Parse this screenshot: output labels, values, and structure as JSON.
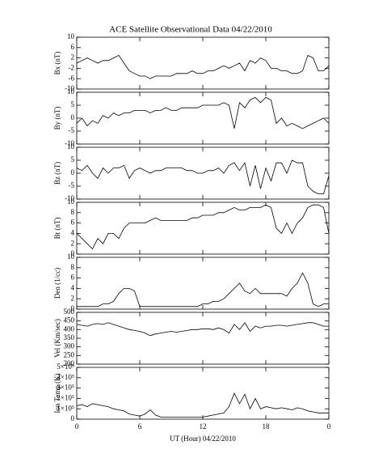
{
  "title": "ACE Satellite Observational Data   04/22/2010",
  "xlabel": "UT (Hour)   04/22/2010",
  "x": [
    0,
    0.5,
    1,
    1.5,
    2,
    2.5,
    3,
    3.5,
    4,
    4.5,
    5,
    5.5,
    6,
    6.5,
    7,
    7.5,
    8,
    8.5,
    9,
    9.5,
    10,
    10.5,
    11,
    11.5,
    12,
    12.5,
    13,
    13.5,
    14,
    14.5,
    15,
    15.5,
    16,
    16.5,
    17,
    17.5,
    18,
    18.5,
    19,
    19.5,
    20,
    20.5,
    21,
    21.5,
    22,
    22.5,
    23,
    23.5,
    24
  ],
  "xlim": [
    0,
    24
  ],
  "xticks": [
    0,
    6,
    12,
    18,
    {
      "value": 24,
      "label": "0"
    }
  ],
  "chart_data": [
    {
      "type": "line",
      "ylabel": "Bx (nT)",
      "color": "#000000",
      "ylim": [
        -10,
        10
      ],
      "yticks": [
        -10,
        -6,
        -2,
        2,
        6,
        10
      ],
      "values": [
        0,
        1,
        2,
        1,
        0,
        1,
        1,
        2,
        3,
        0,
        -3,
        -4,
        -5,
        -5,
        -6,
        -5,
        -5,
        -5,
        -5,
        -4,
        -4,
        -4,
        -3,
        -4,
        -4,
        -3,
        -3,
        -2,
        -1,
        -2,
        -1,
        0,
        -3,
        1,
        0,
        2,
        1,
        -2,
        -2,
        -3,
        -3,
        -4,
        -4,
        -3,
        3,
        2,
        -3,
        -3,
        -1
      ]
    },
    {
      "type": "line",
      "ylabel": "By (nT)",
      "color": "#000000",
      "ylim": [
        -10,
        10
      ],
      "yticks": [
        -10,
        -5,
        0,
        5,
        10
      ],
      "values": [
        -2,
        0,
        -3,
        -1,
        -2,
        1,
        0,
        2,
        1,
        2,
        2,
        3,
        3,
        3,
        2,
        3,
        3,
        4,
        3,
        3,
        4,
        4,
        4,
        4,
        5,
        5,
        5,
        5,
        6,
        5,
        -4,
        6,
        4,
        7,
        8,
        6,
        8,
        7,
        -2,
        0,
        -3,
        -2,
        -3,
        -4,
        -3,
        -2,
        -1,
        0,
        -2
      ]
    },
    {
      "type": "line",
      "ylabel": "Bz (nT)",
      "color": "#000000",
      "ylim": [
        -10,
        10
      ],
      "yticks": [
        -10,
        -5,
        0,
        5,
        10
      ],
      "values": [
        2,
        1,
        3,
        0,
        -2,
        2,
        0,
        2,
        2,
        3,
        -2,
        1,
        2,
        1,
        0,
        1,
        1,
        2,
        2,
        2,
        2,
        1,
        1,
        0,
        0,
        1,
        1,
        2,
        0,
        3,
        4,
        1,
        4,
        -5,
        3,
        -6,
        2,
        -3,
        4,
        4,
        0,
        5,
        4,
        4,
        -5,
        -7,
        -8,
        -8,
        -1
      ]
    },
    {
      "type": "line",
      "ylabel": "Bt (nT)",
      "color": "#000000",
      "ylim": [
        0,
        10
      ],
      "yticks": [
        0,
        2,
        4,
        6,
        8,
        10
      ],
      "values": [
        4,
        3,
        2,
        1,
        3,
        2,
        4,
        4,
        3,
        5,
        6,
        6,
        6,
        6,
        6.5,
        7,
        6.5,
        6.5,
        6.5,
        6.5,
        6.5,
        6.5,
        7,
        7,
        7.5,
        7.5,
        7.5,
        8,
        8,
        8.5,
        9,
        8.5,
        8.5,
        9,
        9,
        9,
        9.5,
        9,
        5,
        4,
        6,
        4,
        6,
        7,
        9,
        9.5,
        9.5,
        9,
        4
      ]
    },
    {
      "type": "line",
      "ylabel": "Den (1/cc)",
      "color": "#000000",
      "ylim": [
        0,
        10
      ],
      "yticks": [
        0,
        2,
        4,
        6,
        8,
        10
      ],
      "values": [
        0.5,
        0.5,
        0.5,
        0.5,
        0.5,
        1,
        1,
        1.5,
        3,
        4,
        4,
        3.5,
        0.5,
        0.5,
        0.5,
        0.5,
        0.5,
        0.5,
        0.5,
        0.5,
        0.5,
        0.5,
        0.5,
        0.5,
        1,
        1,
        1.5,
        1.5,
        2,
        3,
        4,
        5,
        3.5,
        3,
        4,
        3,
        3,
        3,
        3,
        3,
        2.5,
        4,
        5,
        7,
        5,
        1,
        0.5,
        1,
        1
      ]
    },
    {
      "type": "line",
      "ylabel": "Vel (Km/sec)",
      "color": "#000000",
      "ylim": [
        200,
        500
      ],
      "yticks": [
        200,
        250,
        300,
        350,
        400,
        450,
        500
      ],
      "values": [
        430,
        425,
        420,
        430,
        435,
        430,
        440,
        430,
        420,
        410,
        400,
        395,
        390,
        380,
        365,
        375,
        380,
        385,
        390,
        385,
        390,
        395,
        400,
        400,
        405,
        405,
        400,
        410,
        400,
        380,
        430,
        400,
        440,
        390,
        420,
        410,
        420,
        420,
        425,
        425,
        420,
        425,
        430,
        435,
        440,
        440,
        430,
        420,
        420
      ]
    },
    {
      "type": "line",
      "ylabel": "Ion Temp (K)",
      "color": "#000000",
      "ylim": [
        0,
        500000
      ],
      "yticks": [
        0,
        {
          "value": 100000,
          "label": "1×10⁵"
        },
        {
          "value": 200000,
          "label": "2×10⁵"
        },
        {
          "value": 300000,
          "label": "3×10⁵"
        },
        {
          "value": 400000,
          "label": "4×10⁵"
        },
        {
          "value": 500000,
          "label": "5×10⁵"
        }
      ],
      "values": [
        130000,
        140000,
        120000,
        150000,
        140000,
        130000,
        120000,
        100000,
        90000,
        80000,
        50000,
        40000,
        30000,
        50000,
        90000,
        40000,
        20000,
        20000,
        20000,
        20000,
        20000,
        20000,
        20000,
        20000,
        20000,
        30000,
        40000,
        50000,
        60000,
        120000,
        250000,
        150000,
        240000,
        100000,
        200000,
        100000,
        120000,
        110000,
        100000,
        110000,
        100000,
        90000,
        110000,
        100000,
        80000,
        70000,
        60000,
        60000,
        60000
      ]
    }
  ]
}
